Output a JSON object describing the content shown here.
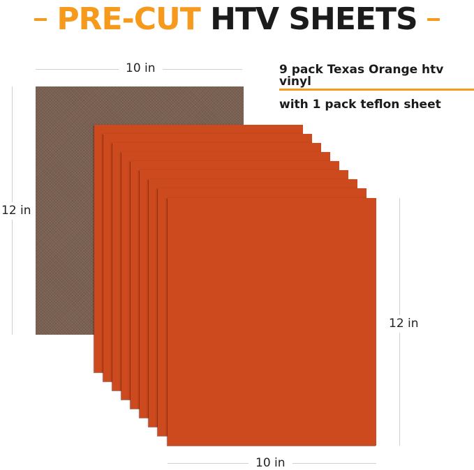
{
  "title": {
    "accent": "PRE-CUT",
    "main": "HTV SHEETS"
  },
  "info": {
    "line1": "9 pack Texas Orange htv vinyl",
    "line2": "with 1 pack teflon sheet"
  },
  "dimensions": {
    "teflon_width": "10 in",
    "teflon_height": "12 in",
    "vinyl_height": "12 in",
    "vinyl_width": "10 in"
  },
  "product": {
    "vinyl_sheet_count": 9,
    "teflon_sheet_count": 1
  },
  "colors": {
    "accent": "#f59a1c",
    "title_text": "#1b1b1b",
    "vinyl": "#cc4a1d",
    "teflon": "#7a6051"
  }
}
